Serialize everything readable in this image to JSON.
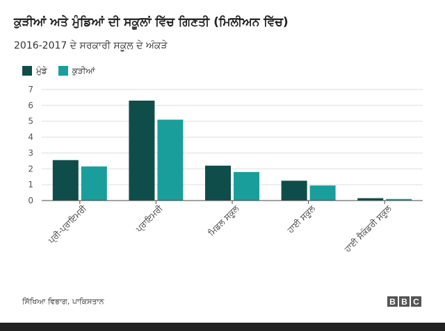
{
  "header": {
    "title": "ਕੁੜੀਆਂ ਅਤੇ ਮੁੰਡਿਆਂ ਦੀ ਸਕੂਲਾਂ ਵਿੱਚ ਗਿਣਤੀ (ਮਿਲੀਅਨ ਵਿੱਚ)",
    "subtitle": "2016-2017 ਦੇ ਸਰਕਾਰੀ ਸਕੂਲ ਦੇ ਅੰਕੜੇ"
  },
  "footer": {
    "source": "ਸਿੱਖਿਆ ਵਿਭਾਗ, ਪਾਕਿਸਤਾਨ",
    "logo_letters": [
      "B",
      "B",
      "C"
    ]
  },
  "chart_data": {
    "type": "bar",
    "title": "ਕੁੜੀਆਂ ਅਤੇ ਮੁੰਡਿਆਂ ਦੀ ਸਕੂਲਾਂ ਵਿੱਚ ਗਿਣਤੀ (ਮਿਲੀਅਨ ਵਿੱਚ)",
    "subtitle": "2016-2017 ਦੇ ਸਰਕਾਰੀ ਸਕੂਲ ਦੇ ਅੰਕੜੇ",
    "categories": [
      "ਪ੍ਰੀ-ਪ੍ਰਾਇਮਰੀ",
      "ਪ੍ਰਾਇਮਰੀ",
      "ਮਿਡਲ ਸਕੂਲ",
      "ਹਾਈ ਸਕੂਲ",
      "ਹਾਈ ਸੈਕੰਡਰੀ ਸਕੂਲ"
    ],
    "series": [
      {
        "name": "ਮੁੰਡੇ",
        "color": "#0f4d4a",
        "values": [
          2.55,
          6.3,
          2.2,
          1.25,
          0.15
        ]
      },
      {
        "name": "ਕੁੜੀਆਂ",
        "color": "#1a9e9c",
        "values": [
          2.15,
          5.1,
          1.8,
          0.95,
          0.1
        ]
      }
    ],
    "yticks": [
      0,
      1,
      2,
      3,
      4,
      5,
      6,
      7
    ],
    "ylim": [
      0,
      7
    ],
    "xlabel": "",
    "ylabel": "",
    "grid": true,
    "legend_position": "top-left"
  }
}
